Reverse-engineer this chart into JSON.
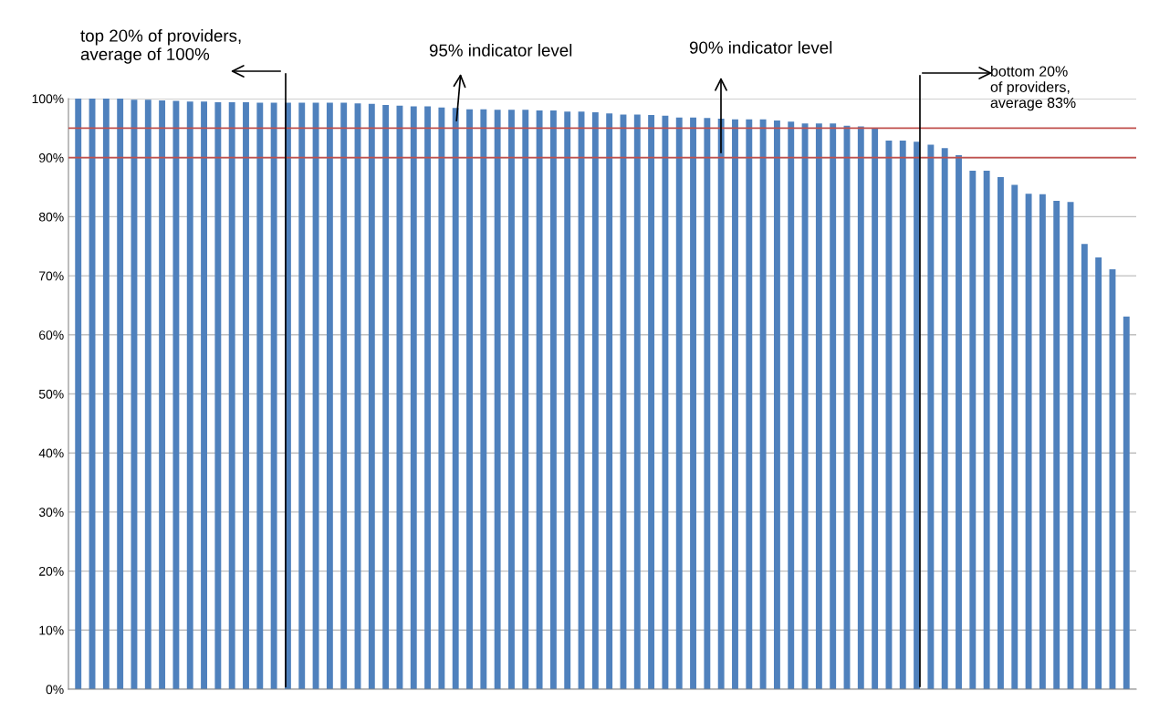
{
  "chart_data": {
    "type": "bar",
    "categories": [
      null,
      null,
      null,
      null,
      null,
      null,
      null,
      null,
      null,
      null,
      null,
      null,
      null,
      null,
      null,
      null,
      null,
      null,
      null,
      null,
      null,
      null,
      null,
      null,
      null,
      null,
      null,
      null,
      null,
      null,
      null,
      null,
      null,
      null,
      null,
      null,
      null,
      null,
      null,
      null,
      null,
      null,
      null,
      null,
      null,
      null,
      null,
      null,
      null,
      null,
      null,
      null,
      null,
      null,
      null,
      null,
      null,
      null,
      null,
      null,
      null,
      null,
      null,
      null,
      null,
      null,
      null,
      null,
      null,
      null,
      null,
      null,
      null,
      null,
      null,
      null
    ],
    "values": [
      100,
      100,
      100,
      100,
      99.8,
      99.8,
      99.7,
      99.6,
      99.5,
      99.5,
      99.4,
      99.4,
      99.4,
      99.3,
      99.3,
      99.3,
      99.3,
      99.3,
      99.3,
      99.3,
      99.2,
      99.1,
      98.9,
      98.8,
      98.7,
      98.7,
      98.5,
      98.4,
      98.2,
      98.2,
      98.1,
      98.1,
      98.1,
      98.0,
      98.0,
      97.8,
      97.8,
      97.7,
      97.5,
      97.3,
      97.3,
      97.2,
      97.1,
      96.8,
      96.8,
      96.7,
      96.6,
      96.5,
      96.5,
      96.5,
      96.3,
      96.1,
      95.8,
      95.8,
      95.8,
      95.4,
      95.3,
      94.9,
      92.9,
      92.9,
      92.7,
      92.2,
      91.6,
      90.4,
      87.8,
      87.8,
      86.7,
      85.4,
      83.9,
      83.8,
      82.7,
      82.5,
      75.4,
      73.1,
      71.1,
      63.1
    ],
    "color": "#4f81bd",
    "ylim": [
      0,
      100
    ],
    "yticks": [
      {
        "value": 0,
        "label": "0%"
      },
      {
        "value": 10,
        "label": "10%"
      },
      {
        "value": 20,
        "label": "20%"
      },
      {
        "value": 30,
        "label": "30%"
      },
      {
        "value": 40,
        "label": "40%"
      },
      {
        "value": 50,
        "label": "50%"
      },
      {
        "value": 60,
        "label": "60%"
      },
      {
        "value": 70,
        "label": "70%"
      },
      {
        "value": 80,
        "label": "80%"
      },
      {
        "value": 90,
        "label": "90%"
      },
      {
        "value": 100,
        "label": "100%"
      }
    ],
    "grid": "y",
    "ref_lines": [
      {
        "axis": "y",
        "value": 95,
        "color": "#c0504d"
      },
      {
        "axis": "y",
        "value": 90,
        "color": "#c0504d"
      }
    ],
    "annotations": [
      "top 20% of providers,\naverage of 100%",
      "95% indicator level",
      "90% indicator level",
      "bottom 20%\nof providers,\naverage 83%"
    ]
  }
}
